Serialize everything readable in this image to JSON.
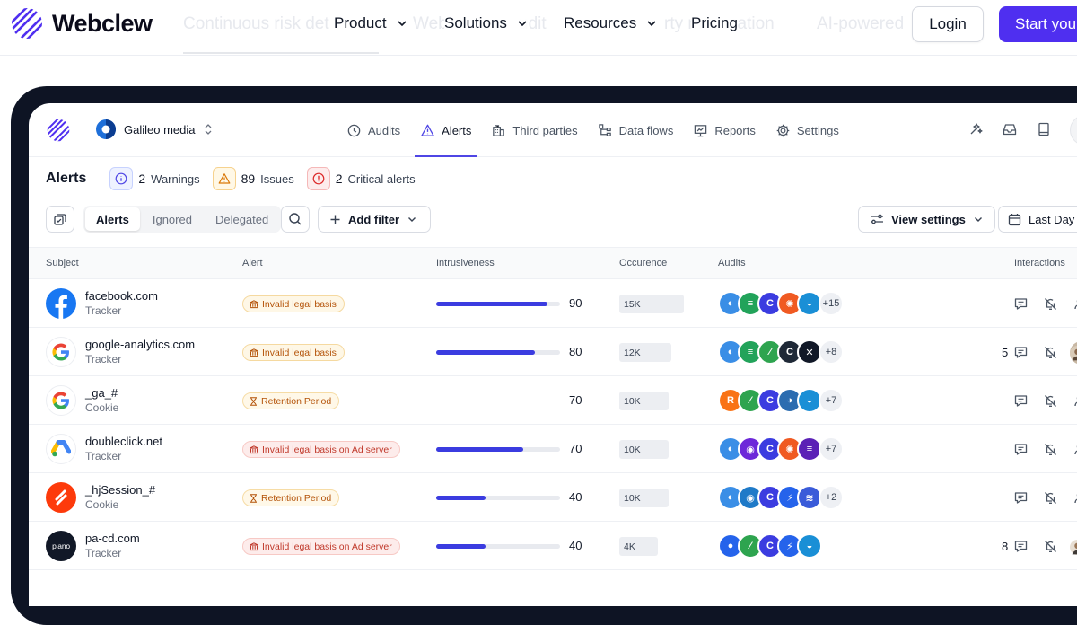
{
  "site": {
    "brand": "Webclew",
    "ghost_text": [
      "Continuous risk det",
      "Web",
      "udit",
      "rty m",
      "cation",
      "AI-powered"
    ],
    "nav": [
      {
        "label": "Product"
      },
      {
        "label": "Solutions"
      },
      {
        "label": "Resources"
      },
      {
        "label": "Pricing"
      }
    ],
    "login_label": "Login",
    "start_label": "Start you"
  },
  "app": {
    "workspace": "Galileo media",
    "tabs": [
      {
        "label": "Audits",
        "icon": "audits-icon"
      },
      {
        "label": "Alerts",
        "icon": "alert-triangle-icon",
        "active": true
      },
      {
        "label": "Third parties",
        "icon": "building-icon"
      },
      {
        "label": "Data flows",
        "icon": "data-flow-icon"
      },
      {
        "label": "Reports",
        "icon": "reports-icon"
      },
      {
        "label": "Settings",
        "icon": "gear-icon"
      }
    ],
    "summary": {
      "title": "Alerts",
      "warnings_count": "2",
      "warnings_label": "Warnings",
      "issues_count": "89",
      "issues_label": "Issues",
      "critical_count": "2",
      "critical_label": "Critical alerts"
    },
    "toolbar": {
      "segments": [
        "Alerts",
        "Ignored",
        "Delegated"
      ],
      "add_filter": "Add filter",
      "view_settings": "View settings",
      "date_range": "Last Day"
    },
    "columns": [
      "Subject",
      "Alert",
      "Intrusiveness",
      "Occurence",
      "Audits",
      "Interactions"
    ],
    "colors": {
      "accent": "#4f2ff0",
      "bar": "#3b3ce0",
      "tab_underline": "#4f46e5"
    },
    "rows": [
      {
        "name": "facebook.com",
        "type": "Tracker",
        "logo": "facebook-logo",
        "alert": "Invalid legal basis",
        "alert_kind": "legal",
        "intrusiveness": 90,
        "bar_shown": true,
        "occurrence": "15K",
        "audits_more": "+15",
        "interaction_count": "",
        "has_user": false
      },
      {
        "name": "google-analytics.com",
        "type": "Tracker",
        "logo": "google-logo",
        "alert": "Invalid legal basis",
        "alert_kind": "legal",
        "intrusiveness": 80,
        "bar_shown": true,
        "occurrence": "12K",
        "audits_more": "+8",
        "interaction_count": "5",
        "has_user": true
      },
      {
        "name": "_ga_#",
        "type": "Cookie",
        "logo": "google-logo",
        "alert": "Retention Period",
        "alert_kind": "retention",
        "intrusiveness": 70,
        "bar_shown": false,
        "occurrence": "10K",
        "audits_more": "+7",
        "interaction_count": "",
        "has_user": false
      },
      {
        "name": "doubleclick.net",
        "type": "Tracker",
        "logo": "google-ads-logo",
        "alert": "Invalid legal basis on Ad server",
        "alert_kind": "adserver",
        "intrusiveness": 70,
        "bar_shown": true,
        "occurrence": "10K",
        "audits_more": "+7",
        "interaction_count": "",
        "has_user": false
      },
      {
        "name": "_hjSession_#",
        "type": "Cookie",
        "logo": "hotjar-logo",
        "alert": "Retention Period",
        "alert_kind": "retention",
        "intrusiveness": 40,
        "bar_shown": true,
        "occurrence": "10K",
        "audits_more": "+2",
        "interaction_count": "",
        "has_user": false
      },
      {
        "name": "pa-cd.com",
        "type": "Tracker",
        "logo": "piano-logo",
        "logo_text": "piano",
        "alert": "Invalid legal basis on Ad server",
        "alert_kind": "adserver",
        "intrusiveness": 40,
        "bar_shown": true,
        "occurrence": "4K",
        "audits_more": "",
        "interaction_count": "8",
        "has_user": true
      }
    ]
  }
}
